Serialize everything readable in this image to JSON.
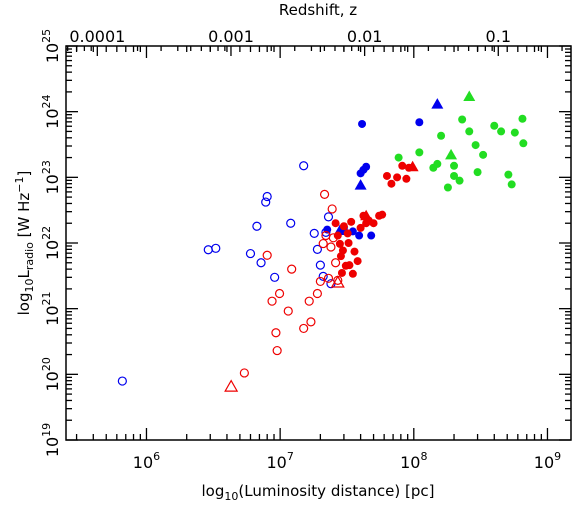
{
  "chart_data": {
    "type": "scatter",
    "title": "",
    "xlabel": "log10(Luminosity distance) [pc]",
    "ylabel": "log10Lradio [W Hz-1]",
    "x_scale": "log",
    "y_scale": "log",
    "xlim": [
      250000,
      1500000000
    ],
    "ylim": [
      1e+19,
      1e+25
    ],
    "x_ticks": [
      {
        "value": 1000000,
        "base": "10",
        "exp": "6"
      },
      {
        "value": 10000000,
        "base": "10",
        "exp": "7"
      },
      {
        "value": 100000000,
        "base": "10",
        "exp": "8"
      },
      {
        "value": 1000000000,
        "base": "10",
        "exp": "9"
      }
    ],
    "y_ticks": [
      {
        "value": 1e+19,
        "base": "10",
        "exp": "19"
      },
      {
        "value": 1e+20,
        "base": "10",
        "exp": "20"
      },
      {
        "value": 1e+21,
        "base": "10",
        "exp": "21"
      },
      {
        "value": 1e+22,
        "base": "10",
        "exp": "22"
      },
      {
        "value": 1e+23,
        "base": "10",
        "exp": "23"
      },
      {
        "value": 1e+24,
        "base": "10",
        "exp": "24"
      },
      {
        "value": 1e+25,
        "base": "10",
        "exp": "25"
      }
    ],
    "top_axis": {
      "label": "Redshift, z",
      "scale": "log",
      "xlim": [
        5.83e-05,
        0.35
      ],
      "ticks": [
        {
          "value": 0.0001,
          "label": "0.0001"
        },
        {
          "value": 0.001,
          "label": "0.001"
        },
        {
          "value": 0.01,
          "label": "0.01"
        },
        {
          "value": 0.1,
          "label": "0.1"
        }
      ]
    },
    "grid": false,
    "legend": "none",
    "colors": {
      "blue": "#0000ee",
      "red": "#ee0000",
      "green": "#22dd22"
    },
    "series": [
      {
        "color": "blue",
        "marker": "open-circle",
        "points": [
          [
            660000,
            7.9e+19
          ],
          [
            2900000,
            7.9e+21
          ],
          [
            3300000,
            8.3e+21
          ],
          [
            6000000,
            6.9e+21
          ],
          [
            6700000,
            1.8e+22
          ],
          [
            7200000,
            5e+21
          ],
          [
            7800000,
            4.2e+22
          ],
          [
            8000000,
            5.1e+22
          ],
          [
            9100000,
            3e+21
          ],
          [
            12000000,
            2e+22
          ],
          [
            15000000,
            1.5e+23
          ],
          [
            18000000,
            1.4e+22
          ],
          [
            19000000,
            8e+21
          ],
          [
            20000000,
            4.6e+21
          ],
          [
            21000000,
            3.1e+21
          ],
          [
            22000000,
            1.45e+22
          ],
          [
            23000000,
            2.5e+22
          ],
          [
            24000000,
            2.4e+21
          ]
        ]
      },
      {
        "color": "blue",
        "marker": "filled-circle",
        "points": [
          [
            22500000,
            1.6e+22
          ],
          [
            30000000,
            1.7e+22
          ],
          [
            35000000,
            1.5e+22
          ],
          [
            39000000,
            1.3e+22
          ],
          [
            40000000,
            1.15e+23
          ],
          [
            41000000,
            6.5e+23
          ],
          [
            42000000,
            1.3e+23
          ],
          [
            44000000,
            1.45e+23
          ],
          [
            48000000,
            1.3e+22
          ],
          [
            110000000,
            6.9e+23
          ]
        ]
      },
      {
        "color": "blue",
        "marker": "filled-triangle",
        "points": [
          [
            28000000,
            1.55e+22
          ],
          [
            40000000,
            7.6e+22
          ],
          [
            150000000,
            1.3e+24
          ]
        ]
      },
      {
        "color": "red",
        "marker": "open-circle",
        "points": [
          [
            5400000,
            1.05e+20
          ],
          [
            8000000,
            6.5e+21
          ],
          [
            8700000,
            1.3e+21
          ],
          [
            9300000,
            4.3e+20
          ],
          [
            9500000,
            2.3e+20
          ],
          [
            9900000,
            1.7e+21
          ],
          [
            11500000,
            9.2e+20
          ],
          [
            12200000,
            4e+21
          ],
          [
            15000000,
            5e+20
          ],
          [
            16500000,
            1.3e+21
          ],
          [
            17000000,
            6.3e+20
          ],
          [
            19000000,
            1.7e+21
          ],
          [
            20000000,
            2.6e+21
          ],
          [
            21000000,
            9.8e+21
          ],
          [
            21500000,
            5.5e+22
          ],
          [
            22000000,
            1.3e+22
          ],
          [
            23000000,
            2.9e+21
          ],
          [
            24000000,
            8.7e+21
          ],
          [
            25000000,
            1.2e+22
          ],
          [
            24500000,
            3.3e+22
          ],
          [
            26000000,
            5e+21
          ],
          [
            27000000,
            2.7e+21
          ]
        ]
      },
      {
        "color": "red",
        "marker": "open-triangle",
        "points": [
          [
            4300000,
            6.5e+19
          ],
          [
            27000000,
            2.5e+21
          ]
        ]
      },
      {
        "color": "red",
        "marker": "filled-circle",
        "points": [
          [
            26000000,
            2e+22
          ],
          [
            27000000,
            1.3e+22
          ],
          [
            28000000,
            9.7e+21
          ],
          [
            28500000,
            6.3e+21
          ],
          [
            29000000,
            3.5e+21
          ],
          [
            29500000,
            7.7e+21
          ],
          [
            30000000,
            1.8e+22
          ],
          [
            31000000,
            4.5e+21
          ],
          [
            32000000,
            1.4e+22
          ],
          [
            32500000,
            1e+22
          ],
          [
            33000000,
            4.6e+21
          ],
          [
            34000000,
            2.1e+22
          ],
          [
            35000000,
            3.4e+21
          ],
          [
            36000000,
            7.4e+21
          ],
          [
            38000000,
            5.3e+21
          ],
          [
            40000000,
            1.7e+22
          ],
          [
            42000000,
            2.6e+22
          ],
          [
            44000000,
            2e+22
          ],
          [
            46000000,
            2.2e+22
          ],
          [
            50000000,
            2e+22
          ],
          [
            55000000,
            2.6e+22
          ],
          [
            58000000,
            2.7e+22
          ],
          [
            63000000,
            1.05e+23
          ],
          [
            68000000,
            8e+22
          ],
          [
            75000000,
            1e+23
          ],
          [
            82000000,
            1.5e+23
          ],
          [
            88000000,
            9.5e+22
          ],
          [
            92000000,
            1.4e+23
          ]
        ]
      },
      {
        "color": "red",
        "marker": "filled-triangle",
        "points": [
          [
            44000000,
            2.6e+22
          ],
          [
            98000000,
            1.45e+23
          ]
        ]
      },
      {
        "color": "green",
        "marker": "filled-circle",
        "points": [
          [
            77000000,
            2e+23
          ],
          [
            110000000,
            2.4e+23
          ],
          [
            140000000,
            1.4e+23
          ],
          [
            150000000,
            1.6e+23
          ],
          [
            160000000,
            4.3e+23
          ],
          [
            180000000,
            7e+22
          ],
          [
            200000000,
            1.05e+23
          ],
          [
            200000000,
            1.5e+23
          ],
          [
            220000000,
            8.9e+22
          ],
          [
            230000000,
            7.6e+23
          ],
          [
            260000000,
            5e+23
          ],
          [
            290000000,
            3.1e+23
          ],
          [
            300000000,
            1.2e+23
          ],
          [
            330000000,
            2.2e+23
          ],
          [
            400000000,
            6.1e+23
          ],
          [
            450000000,
            5e+23
          ],
          [
            510000000,
            1.1e+23
          ],
          [
            540000000,
            7.8e+22
          ],
          [
            570000000,
            4.8e+23
          ],
          [
            650000000,
            7.8e+23
          ],
          [
            660000000,
            3.3e+23
          ]
        ]
      },
      {
        "color": "green",
        "marker": "filled-triangle",
        "points": [
          [
            190000000,
            2.2e+23
          ],
          [
            260000000,
            1.7e+24
          ]
        ]
      }
    ]
  }
}
